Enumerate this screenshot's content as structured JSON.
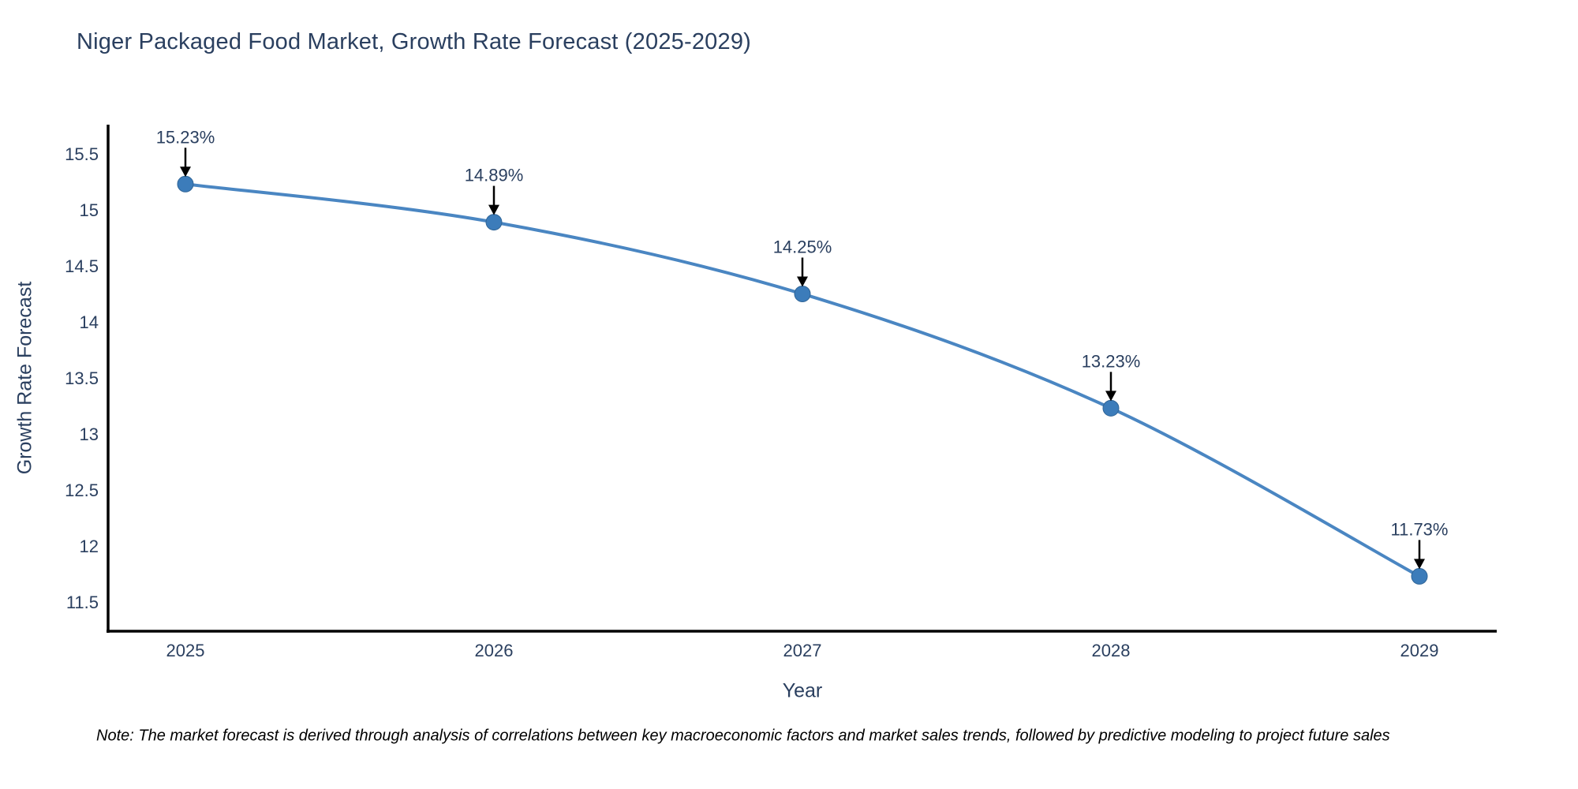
{
  "title": "Niger Packaged Food Market, Growth Rate Forecast (2025-2029)",
  "note": "Note: The market forecast is derived through analysis of correlations between key macroeconomic factors and market sales trends, followed by predictive modeling to project future sales",
  "colors": {
    "title_text": "#2a3f5f",
    "tick_text": "#2a3f5f",
    "annotation_text": "#2a3f5f",
    "line": "#4a86c2",
    "marker": "#3c7cba",
    "marker_edge": "#2f6496",
    "axis": "#000000",
    "arrow": "#000000",
    "note_text": "#000000",
    "background": "#ffffff"
  },
  "chart_data": {
    "type": "line",
    "title": "Niger Packaged Food Market, Growth Rate Forecast (2025-2029)",
    "xlabel": "Year",
    "ylabel": "Growth Rate Forecast",
    "x": [
      2025,
      2026,
      2027,
      2028,
      2029
    ],
    "y": [
      15.23,
      14.89,
      14.25,
      13.23,
      11.73
    ],
    "point_labels": [
      "15.23%",
      "14.89%",
      "14.25%",
      "13.23%",
      "11.73%"
    ],
    "x_tick_labels": [
      "2025",
      "2026",
      "2027",
      "2028",
      "2029"
    ],
    "y_tick_labels": [
      "11.5",
      "12",
      "12.5",
      "13",
      "13.5",
      "14",
      "14.5",
      "15",
      "15.5"
    ],
    "y_tick_values": [
      11.5,
      12,
      12.5,
      13,
      13.5,
      14,
      14.5,
      15,
      15.5
    ],
    "ylim": [
      11.24,
      15.76
    ],
    "line_shape": "spline",
    "grid": false,
    "legend": "none",
    "annotation_style": "arrow-down-to-point"
  }
}
